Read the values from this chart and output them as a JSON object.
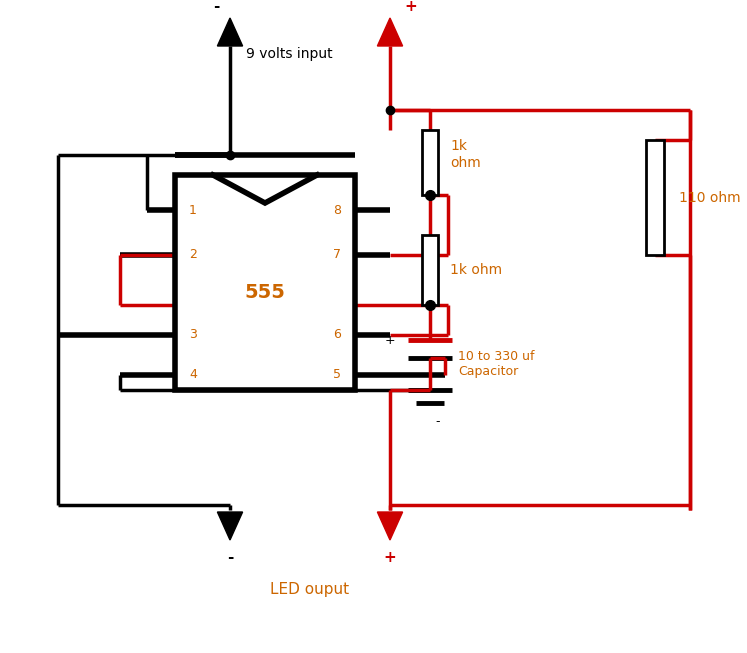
{
  "bg_color": "#ffffff",
  "black": "#000000",
  "red": "#cc0000",
  "orange_text": "#cc6600",
  "fig_w": 7.47,
  "fig_h": 6.53,
  "dpi": 100,
  "chip_label": "555",
  "label_9v": "9 volts input",
  "label_1k_top": "1k\nohm",
  "label_1k_bot": "1k ohm",
  "label_110": "110 ohm",
  "label_cap_plus": "+",
  "label_cap_minus": "-",
  "label_cap": "10 to 330 uf\nCapacitor",
  "label_led": "LED ouput",
  "label_minus_top": "-",
  "label_plus_top": "+",
  "label_minus_bot": "-",
  "label_plus_bot": "+"
}
